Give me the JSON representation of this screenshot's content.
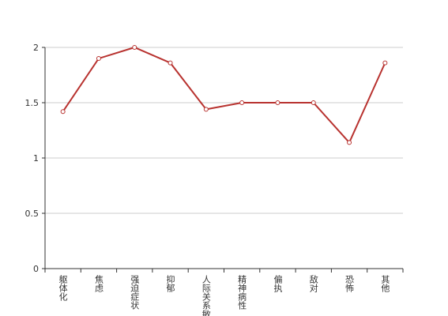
{
  "chart_data": {
    "type": "line",
    "categories": [
      "躯体化",
      "焦虑",
      "强迫症状",
      "抑郁",
      "人际关系敏感",
      "精神病性",
      "偏执",
      "敌对",
      "恐怖",
      "其他"
    ],
    "series": [
      {
        "color": "#b8322f",
        "values": [
          1.42,
          1.9,
          2.0,
          1.86,
          1.44,
          1.5,
          1.5,
          1.5,
          1.14,
          1.86
        ]
      }
    ],
    "ylim": [
      0,
      2
    ],
    "yticks": [
      0,
      0.5,
      1,
      1.5,
      2
    ],
    "grid": true
  }
}
